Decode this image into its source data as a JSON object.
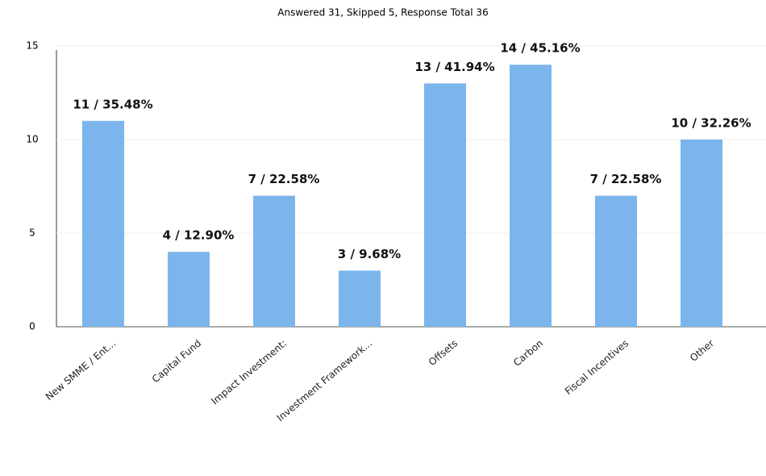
{
  "chart_data": {
    "type": "bar",
    "title": "Answered 31, Skipped 5, Response Total 36",
    "categories": [
      "New SMME / Ent...",
      "Capital Fund",
      "Impact Investment:",
      "Investment Framework...",
      "Offsets",
      "Carbon",
      "Fiscal Incentives",
      "Other"
    ],
    "values": [
      11,
      4,
      7,
      3,
      13,
      14,
      7,
      10
    ],
    "value_labels": [
      "11 / 35.48%",
      "4 / 12.90%",
      "7 / 22.58%",
      "3 / 9.68%",
      "13 / 41.94%",
      "14 / 45.16%",
      "7 / 22.58%",
      "10 / 32.26%"
    ],
    "color": "#7cb5ec",
    "ylim": [
      0,
      15
    ],
    "yticks": [
      0,
      5,
      10,
      15
    ],
    "grid": true
  }
}
